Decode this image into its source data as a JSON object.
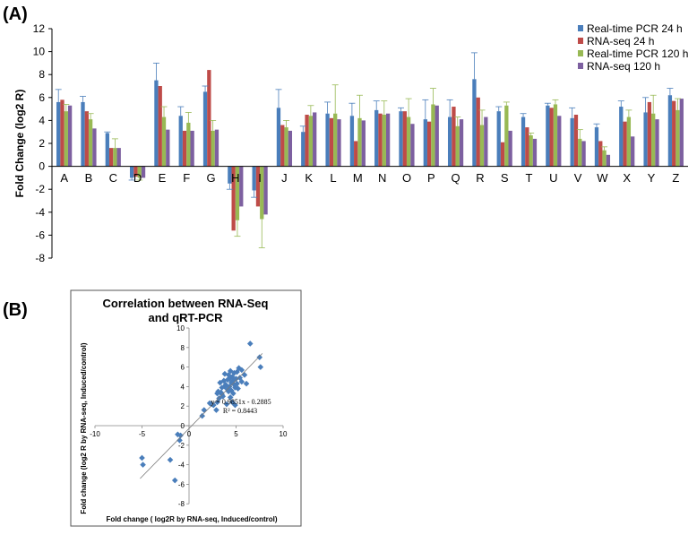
{
  "panels": {
    "a_label": "(A)",
    "b_label": "(B)"
  },
  "chart_data": [
    {
      "type": "bar",
      "title": "",
      "xlabel": "",
      "ylabel": "Fold Change (log2 R)",
      "ylim": [
        -8,
        12
      ],
      "yticks": [
        -8,
        -6,
        -4,
        -2,
        0,
        2,
        4,
        6,
        8,
        10,
        12
      ],
      "legend_position": "top-right",
      "categories": [
        "A",
        "B",
        "C",
        "D",
        "E",
        "F",
        "G",
        "H",
        "I",
        "J",
        "K",
        "L",
        "M",
        "N",
        "O",
        "P",
        "Q",
        "R",
        "S",
        "T",
        "U",
        "V",
        "W",
        "X",
        "Y",
        "Z"
      ],
      "series": [
        {
          "name": "Real-time PCR 24 h",
          "color": "#4a7ebb",
          "values": [
            5.6,
            5.6,
            2.9,
            -1.0,
            7.5,
            4.4,
            6.5,
            -1.5,
            -2.1,
            5.1,
            3.0,
            4.6,
            4.4,
            4.9,
            4.8,
            4.1,
            4.3,
            7.6,
            4.8,
            4.3,
            5.3,
            4.2,
            3.4,
            5.2,
            4.7,
            6.2
          ],
          "errors": [
            1.1,
            0.5,
            0.1,
            0.2,
            1.5,
            0.8,
            0.5,
            0.5,
            0.6,
            1.6,
            0.5,
            1.0,
            1.1,
            0.8,
            0.3,
            1.7,
            1.5,
            2.3,
            0.4,
            0.3,
            0.2,
            0.9,
            0.3,
            0.5,
            1.3,
            0.6
          ]
        },
        {
          "name": "RNA-seq 24 h",
          "color": "#be4b48",
          "values": [
            5.8,
            4.8,
            1.6,
            -0.9,
            7.0,
            3.1,
            8.4,
            -5.6,
            -3.5,
            3.6,
            4.5,
            4.2,
            2.2,
            4.6,
            4.8,
            3.9,
            5.2,
            6.0,
            2.1,
            3.4,
            5.1,
            4.5,
            2.2,
            3.9,
            5.6,
            5.7
          ]
        },
        {
          "name": "Real-time PCR 120 h",
          "color": "#98b954",
          "values": [
            4.8,
            4.1,
            1.6,
            -1.0,
            4.3,
            3.8,
            3.1,
            -4.7,
            -4.6,
            3.4,
            4.4,
            4.6,
            4.2,
            4.5,
            4.3,
            5.4,
            3.5,
            3.6,
            5.3,
            2.7,
            5.4,
            2.4,
            1.4,
            4.3,
            4.6,
            4.9
          ],
          "errors": [
            0.6,
            0.5,
            0.8,
            0.2,
            0.9,
            0.9,
            0.9,
            1.4,
            2.5,
            0.6,
            0.9,
            2.5,
            2.0,
            1.2,
            1.6,
            1.4,
            0.8,
            1.3,
            0.3,
            0.2,
            0.4,
            0.8,
            0.3,
            0.6,
            1.6,
            1.0
          ]
        },
        {
          "name": "RNA-seq 120 h",
          "color": "#7d60a0",
          "values": [
            5.3,
            3.3,
            1.6,
            -1.0,
            3.2,
            3.1,
            3.2,
            -3.5,
            -4.2,
            3.1,
            4.7,
            4.1,
            4.0,
            4.6,
            3.7,
            5.3,
            4.1,
            4.3,
            3.1,
            2.4,
            4.4,
            2.2,
            1.0,
            2.6,
            4.1,
            5.9
          ]
        }
      ]
    },
    {
      "type": "scatter",
      "title": "Correlation between RNA-Seq and qRT-PCR",
      "title_lines": [
        "Correlation between RNA-Seq",
        "and qRT-PCR"
      ],
      "xlabel": "Fold change ( log2R by RNA-seq, Induced/control)",
      "ylabel": "Fold change (log2 R by RNA-seq, Induced/control)",
      "xlim": [
        -10,
        10
      ],
      "ylim": [
        -8,
        10
      ],
      "xticks": [
        -10,
        -5,
        0,
        5,
        10
      ],
      "yticks": [
        -8,
        -6,
        -4,
        -2,
        0,
        2,
        4,
        6,
        8,
        10
      ],
      "marker_color": "#4a7ebb",
      "trendline": {
        "equation": "y = 0.9851x - 0.2885",
        "r_squared": "R² = 0.8443",
        "slope": 0.9851,
        "intercept": -0.2885,
        "x_range": [
          -5.2,
          7.8
        ]
      },
      "points": [
        [
          -5.0,
          -3.3
        ],
        [
          -4.9,
          -4.0
        ],
        [
          -2.0,
          -3.5
        ],
        [
          -1.5,
          -5.6
        ],
        [
          -1.2,
          -0.9
        ],
        [
          -1.0,
          -1.5
        ],
        [
          -0.9,
          -1.0
        ],
        [
          1.4,
          1.0
        ],
        [
          1.6,
          1.6
        ],
        [
          2.2,
          2.3
        ],
        [
          2.4,
          2.2
        ],
        [
          2.6,
          2.1
        ],
        [
          2.9,
          1.6
        ],
        [
          3.0,
          2.4
        ],
        [
          3.0,
          3.3
        ],
        [
          3.1,
          3.5
        ],
        [
          3.2,
          2.8
        ],
        [
          3.3,
          4.4
        ],
        [
          3.4,
          3.4
        ],
        [
          3.5,
          3.9
        ],
        [
          3.5,
          3.2
        ],
        [
          3.6,
          3.0
        ],
        [
          3.7,
          4.6
        ],
        [
          3.8,
          4.0
        ],
        [
          3.8,
          5.3
        ],
        [
          3.9,
          4.2
        ],
        [
          4.0,
          2.2
        ],
        [
          4.1,
          3.7
        ],
        [
          4.1,
          4.7
        ],
        [
          4.2,
          5.2
        ],
        [
          4.2,
          3.5
        ],
        [
          4.3,
          4.8
        ],
        [
          4.3,
          4.0
        ],
        [
          4.4,
          2.9
        ],
        [
          4.4,
          5.6
        ],
        [
          4.5,
          4.4
        ],
        [
          4.5,
          3.6
        ],
        [
          4.6,
          2.4
        ],
        [
          4.6,
          5.0
        ],
        [
          4.7,
          4.6
        ],
        [
          4.7,
          3.3
        ],
        [
          4.8,
          5.4
        ],
        [
          4.8,
          4.2
        ],
        [
          4.9,
          3.9
        ],
        [
          4.9,
          2.1
        ],
        [
          5.0,
          4.8
        ],
        [
          5.1,
          5.5
        ],
        [
          5.1,
          4.3
        ],
        [
          5.2,
          3.8
        ],
        [
          5.3,
          5.9
        ],
        [
          5.4,
          4.9
        ],
        [
          5.6,
          4.5
        ],
        [
          5.6,
          5.7
        ],
        [
          5.9,
          5.2
        ],
        [
          6.1,
          4.3
        ],
        [
          6.5,
          8.4
        ],
        [
          7.5,
          7.0
        ],
        [
          7.6,
          6.0
        ]
      ]
    }
  ]
}
